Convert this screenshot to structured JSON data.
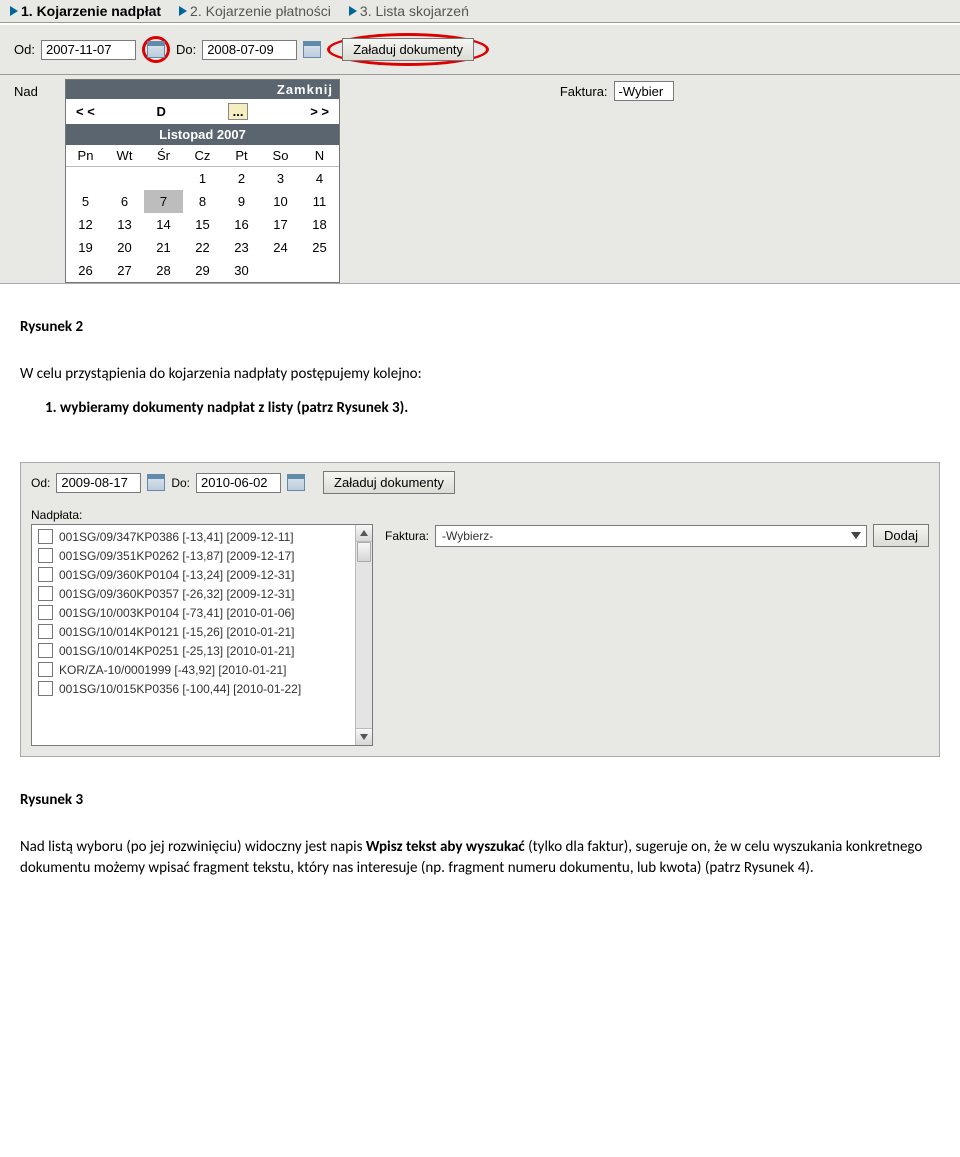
{
  "screenshot1": {
    "tabs": [
      {
        "label": "1. Kojarzenie nadpłat",
        "active": true
      },
      {
        "label": "2. Kojarzenie płatności",
        "active": false
      },
      {
        "label": "3. Lista skojarzeń",
        "active": false
      }
    ],
    "od_label": "Od:",
    "od_value": "2007-11-07",
    "do_label": "Do:",
    "do_value": "2008-07-09",
    "load_btn": "Załaduj dokumenty",
    "nad_label": "Nad",
    "faktura_label": "Faktura:",
    "faktura_value": "-Wybier",
    "calendar": {
      "close": "Zamknij",
      "prev": "< <",
      "dots": "...",
      "next": "> >",
      "month": "Listopad 2007",
      "dow": [
        "Pn",
        "Wt",
        "Śr",
        "Cz",
        "Pt",
        "So",
        "N"
      ],
      "weeks": [
        [
          "",
          "",
          "",
          "1",
          "2",
          "3",
          "4"
        ],
        [
          "5",
          "6",
          "7",
          "8",
          "9",
          "10",
          "11"
        ],
        [
          "12",
          "13",
          "14",
          "15",
          "16",
          "17",
          "18"
        ],
        [
          "19",
          "20",
          "21",
          "22",
          "23",
          "24",
          "25"
        ],
        [
          "26",
          "27",
          "28",
          "29",
          "30",
          "",
          ""
        ]
      ],
      "selected": "7"
    }
  },
  "doc": {
    "fig2": "Rysunek 2",
    "para1": "W celu przystąpienia do kojarzenia nadpłaty postępujemy kolejno:",
    "step1": "wybieramy dokumenty nadpłat z listy (patrz Rysunek 3).",
    "fig3": "Rysunek 3",
    "para2_a": "Nad listą wyboru (po jej rozwinięciu) widoczny jest napis ",
    "para2_b": "Wpisz tekst aby wyszukać",
    "para2_c": " (tylko dla faktur), sugeruje on, że w celu wyszukania konkretnego dokumentu możemy wpisać fragment tekstu, który nas interesuje (np.  fragment numeru dokumentu, lub kwota) (patrz Rysunek 4)."
  },
  "screenshot2": {
    "od_label": "Od:",
    "od_value": "2009-08-17",
    "do_label": "Do:",
    "do_value": "2010-06-02",
    "load_btn": "Załaduj dokumenty",
    "nadplata_label": "Nadpłata:",
    "items": [
      "001SG/09/347KP0386 [-13,41] [2009-12-11]",
      "001SG/09/351KP0262 [-13,87] [2009-12-17]",
      "001SG/09/360KP0104 [-13,24] [2009-12-31]",
      "001SG/09/360KP0357 [-26,32] [2009-12-31]",
      "001SG/10/003KP0104 [-73,41] [2010-01-06]",
      "001SG/10/014KP0121 [-15,26] [2010-01-21]",
      "001SG/10/014KP0251 [-25,13] [2010-01-21]",
      "KOR/ZA-10/0001999 [-43,92] [2010-01-21]",
      "001SG/10/015KP0356 [-100,44] [2010-01-22]"
    ],
    "faktura_label": "Faktura:",
    "faktura_value": "-Wybierz-",
    "dodaj_btn": "Dodaj"
  }
}
